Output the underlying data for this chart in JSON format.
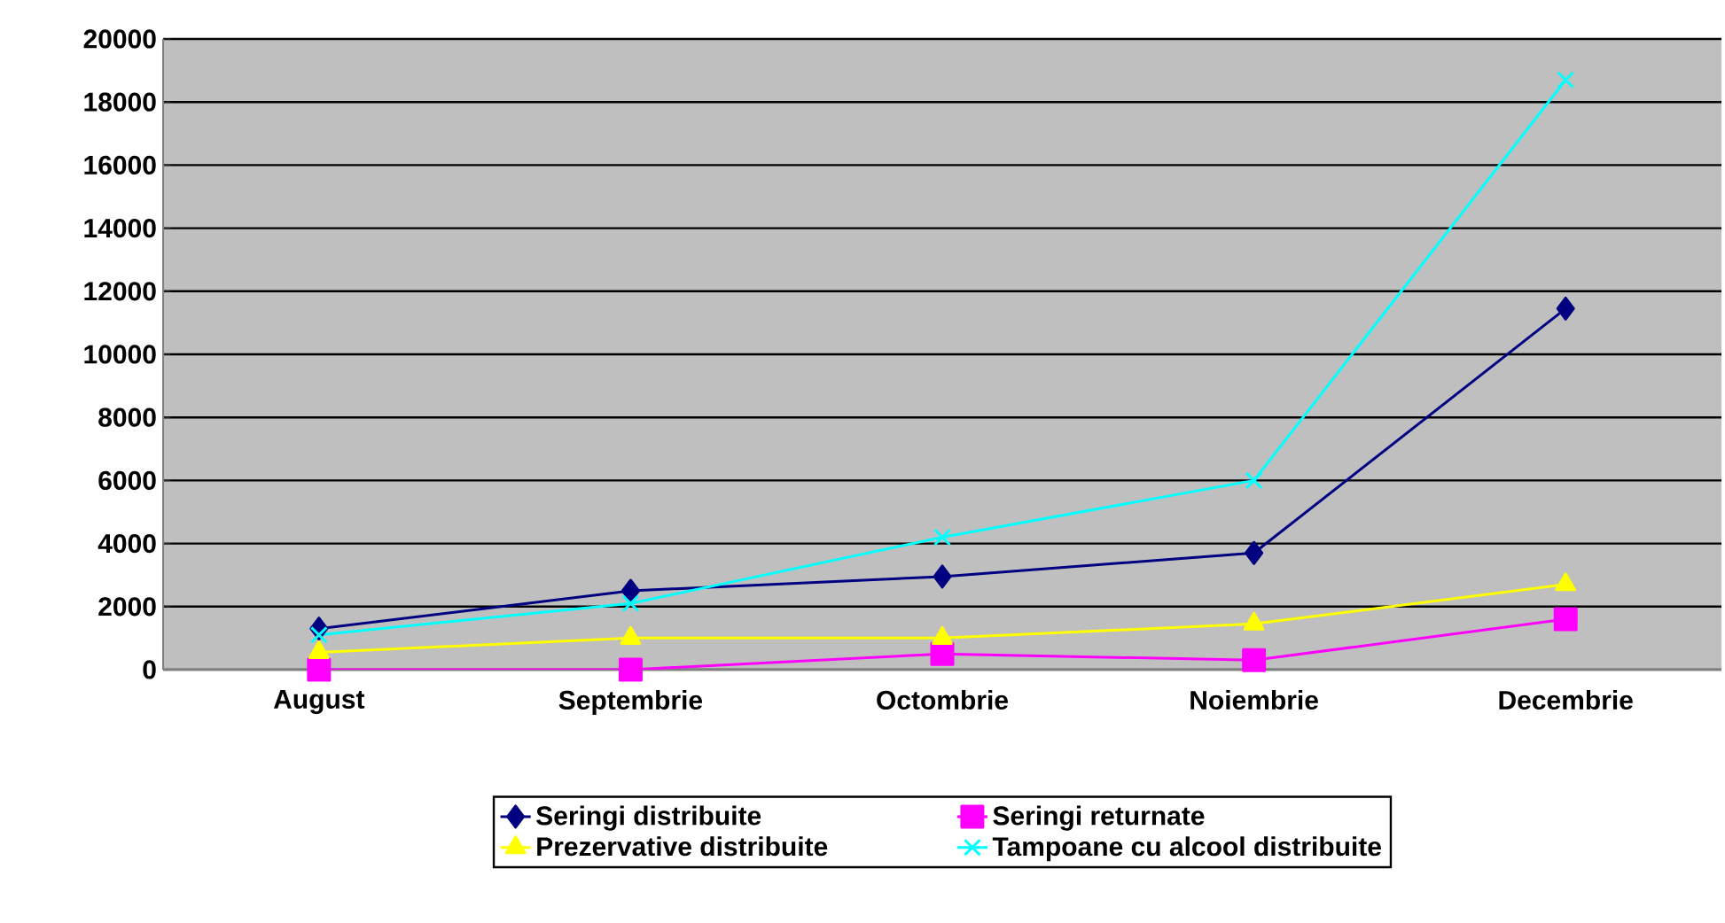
{
  "chart_data": {
    "type": "line",
    "categories": [
      "August",
      "Septembrie",
      "Octombrie",
      "Noiembrie",
      "Decembrie"
    ],
    "series": [
      {
        "name": "Seringi distribuite",
        "color": "#000080",
        "marker": "diamond",
        "values": [
          1300,
          2500,
          2950,
          3700,
          11450
        ]
      },
      {
        "name": "Seringi returnate",
        "color": "#ff00ff",
        "marker": "square",
        "values": [
          0,
          0,
          500,
          300,
          1600
        ]
      },
      {
        "name": "Prezervative distribuite",
        "color": "#ffff00",
        "marker": "triangle",
        "values": [
          550,
          1000,
          1000,
          1450,
          2700
        ]
      },
      {
        "name": "Tampoane cu alcool distribuite",
        "color": "#00ffff",
        "marker": "cross",
        "values": [
          1100,
          2100,
          4200,
          6000,
          18700
        ]
      }
    ],
    "ylim": [
      0,
      20000
    ],
    "yticks": [
      0,
      2000,
      4000,
      6000,
      8000,
      10000,
      12000,
      14000,
      16000,
      18000,
      20000
    ],
    "grid": "y",
    "legend": "bottom",
    "line_style": "solid"
  }
}
